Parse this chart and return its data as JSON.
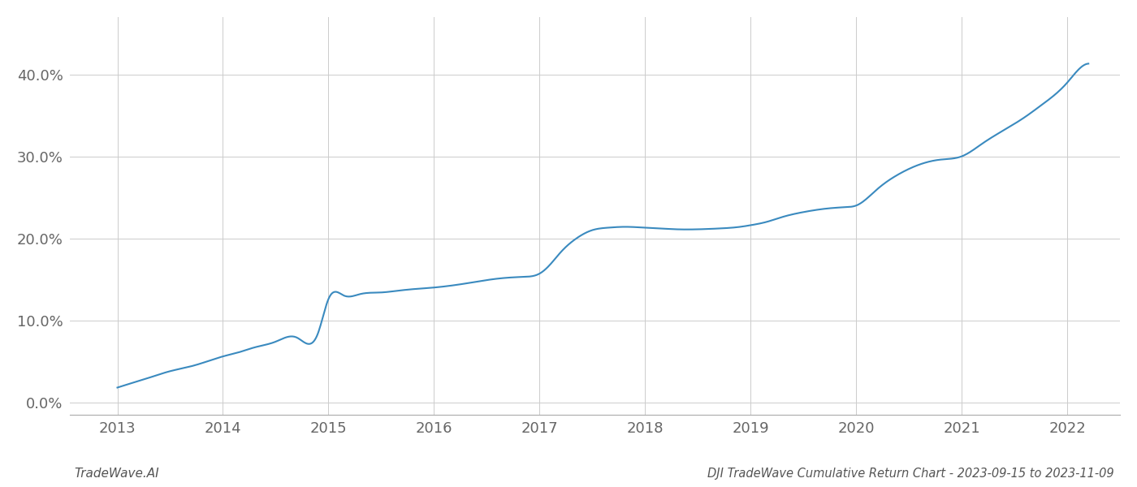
{
  "title_right": "DJI TradeWave Cumulative Return Chart - 2023-09-15 to 2023-11-09",
  "title_left": "TradeWave.AI",
  "line_color": "#3a8abf",
  "background_color": "#ffffff",
  "grid_color": "#cccccc",
  "x_years": [
    2013,
    2014,
    2015,
    2016,
    2017,
    2018,
    2019,
    2020,
    2021,
    2022
  ],
  "y_ticks": [
    0.0,
    0.1,
    0.2,
    0.3,
    0.4
  ],
  "y_tick_labels": [
    "0.0%",
    "10.0%",
    "20.0%",
    "30.0%",
    "40.0%"
  ],
  "ylim": [
    -0.015,
    0.47
  ],
  "xlim": [
    2012.55,
    2022.5
  ],
  "data_x": [
    2013.0,
    2013.15,
    2013.3,
    2013.5,
    2013.7,
    2013.9,
    2014.0,
    2014.15,
    2014.3,
    2014.5,
    2014.7,
    2014.9,
    2015.0,
    2015.15,
    2015.3,
    2015.5,
    2015.65,
    2015.8,
    2016.0,
    2016.2,
    2016.4,
    2016.55,
    2016.7,
    2016.85,
    2017.0,
    2017.1,
    2017.2,
    2017.35,
    2017.5,
    2017.65,
    2017.8,
    2018.0,
    2018.15,
    2018.3,
    2018.5,
    2018.7,
    2018.9,
    2019.0,
    2019.15,
    2019.3,
    2019.5,
    2019.7,
    2019.9,
    2020.0,
    2020.2,
    2020.4,
    2020.6,
    2020.8,
    2021.0,
    2021.2,
    2021.4,
    2021.6,
    2021.75,
    2022.0,
    2022.1,
    2022.2
  ],
  "data_y": [
    0.018,
    0.024,
    0.03,
    0.038,
    0.044,
    0.052,
    0.056,
    0.061,
    0.067,
    0.074,
    0.079,
    0.084,
    0.126,
    0.13,
    0.132,
    0.134,
    0.136,
    0.138,
    0.14,
    0.143,
    0.147,
    0.15,
    0.152,
    0.153,
    0.157,
    0.168,
    0.183,
    0.2,
    0.21,
    0.213,
    0.214,
    0.213,
    0.212,
    0.211,
    0.211,
    0.212,
    0.214,
    0.216,
    0.22,
    0.226,
    0.232,
    0.236,
    0.238,
    0.24,
    0.26,
    0.278,
    0.29,
    0.296,
    0.3,
    0.316,
    0.332,
    0.348,
    0.362,
    0.39,
    0.405,
    0.413
  ]
}
